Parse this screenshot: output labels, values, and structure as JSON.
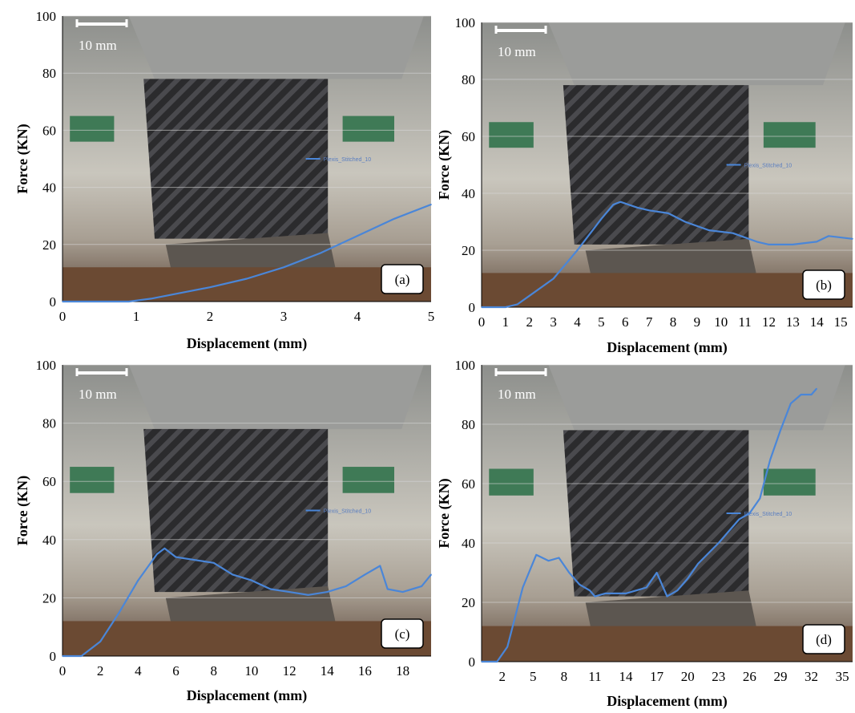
{
  "chart_data": [
    {
      "type": "line",
      "panel_label": "(a)",
      "scale_bar": "10 mm",
      "legend": "Plexis_Stitched_10",
      "xlabel": "Displacement (mm)",
      "ylabel": "Force (KN)",
      "xlim": [
        0,
        5
      ],
      "ylim": [
        0,
        100
      ],
      "xticks": [
        0,
        1,
        2,
        3,
        4,
        5
      ],
      "yticks": [
        0,
        20,
        40,
        60,
        80,
        100
      ],
      "line_color": "#4a86d8",
      "series": [
        {
          "x": [
            0,
            0.5,
            0.9,
            1.2,
            1.5,
            2.0,
            2.5,
            3.0,
            3.5,
            4.0,
            4.5,
            5.0
          ],
          "y": [
            0,
            0,
            0,
            1,
            2.5,
            5,
            8,
            12,
            17,
            23,
            29,
            34
          ]
        }
      ]
    },
    {
      "type": "line",
      "panel_label": "(b)",
      "scale_bar": "10 mm",
      "legend": "Plexis_Stitched_10",
      "xlabel": "Displacement (mm)",
      "ylabel": "Force (KN)",
      "xlim": [
        0,
        15.5
      ],
      "ylim": [
        0,
        100
      ],
      "xticks": [
        0,
        1,
        2,
        3,
        4,
        5,
        6,
        7,
        8,
        9,
        10,
        11,
        12,
        13,
        14,
        15
      ],
      "yticks": [
        0,
        20,
        40,
        60,
        80,
        100
      ],
      "line_color": "#4a86d8",
      "series": [
        {
          "x": [
            0,
            1,
            1.5,
            2,
            3,
            4,
            5,
            5.5,
            5.8,
            6.5,
            7,
            7.8,
            8.5,
            9.5,
            10.5,
            11.5,
            12,
            13,
            14,
            14.5,
            15.5
          ],
          "y": [
            0,
            0,
            1,
            4,
            10,
            20,
            31,
            36,
            37,
            35,
            34,
            33,
            30,
            27,
            26,
            23,
            22,
            22,
            23,
            25,
            24
          ]
        }
      ]
    },
    {
      "type": "line",
      "panel_label": "(c)",
      "scale_bar": "10 mm",
      "legend": "Plexis_Stitched_10",
      "xlabel": "Displacement (mm)",
      "ylabel": "Force (KN)",
      "xlim": [
        0,
        19.5
      ],
      "ylim": [
        0,
        100
      ],
      "xticks": [
        0,
        2,
        4,
        6,
        8,
        10,
        12,
        14,
        16,
        18
      ],
      "yticks": [
        0,
        20,
        40,
        60,
        80,
        100
      ],
      "line_color": "#4a86d8",
      "series": [
        {
          "x": [
            0,
            1,
            2,
            3,
            4,
            5,
            5.4,
            6,
            7,
            8,
            9,
            10,
            11,
            12,
            13,
            14,
            15,
            16,
            16.8,
            17.2,
            18,
            19,
            19.5
          ],
          "y": [
            0,
            0,
            5,
            15,
            26,
            35,
            37,
            34,
            33,
            32,
            28,
            26,
            23,
            22,
            21,
            22,
            24,
            28,
            31,
            23,
            22,
            24,
            28
          ]
        }
      ]
    },
    {
      "type": "line",
      "panel_label": "(d)",
      "scale_bar": "10 mm",
      "legend": "Plexis_Stitched_10",
      "xlabel": "Displacement (mm)",
      "ylabel": "Force (KN)",
      "xlim": [
        0,
        36
      ],
      "ylim": [
        0,
        100
      ],
      "xticks": [
        2,
        5,
        8,
        11,
        14,
        17,
        20,
        23,
        26,
        29,
        32,
        35
      ],
      "yticks": [
        0,
        20,
        40,
        60,
        80,
        100
      ],
      "line_color": "#4a86d8",
      "series": [
        {
          "x": [
            0,
            1.5,
            2.5,
            4,
            5.3,
            6.5,
            7.5,
            8.5,
            9.5,
            10.5,
            11,
            12,
            14,
            16,
            17,
            18,
            19,
            20,
            21,
            23,
            25,
            26,
            27,
            28,
            29,
            30,
            31,
            32,
            32.5
          ],
          "y": [
            0,
            0,
            5,
            25,
            36,
            34,
            35,
            30,
            26,
            24,
            22,
            23,
            23,
            25,
            30,
            22,
            24,
            28,
            33,
            40,
            48,
            50,
            55,
            68,
            78,
            87,
            90,
            90,
            92
          ]
        }
      ]
    }
  ]
}
